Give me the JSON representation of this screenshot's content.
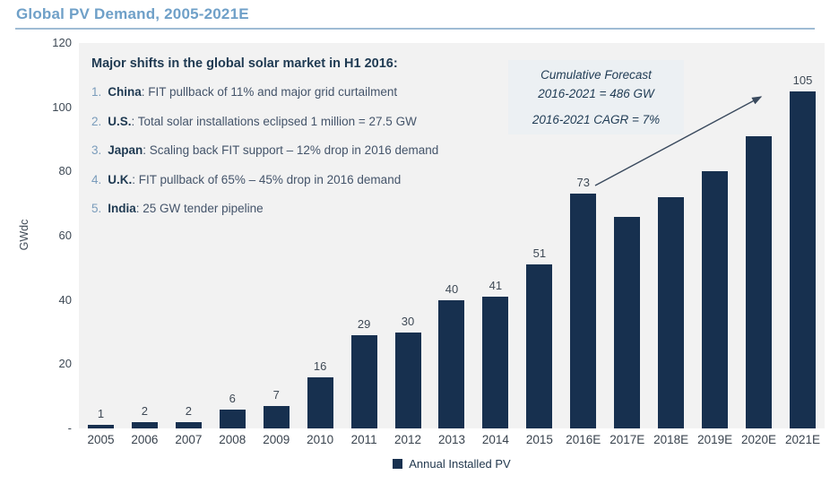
{
  "header": {
    "title": "Global PV Demand, 2005-2021E"
  },
  "annotation": {
    "heading": "Major shifts in the global solar market in H1 2016:",
    "items": [
      {
        "num": "1.",
        "name": "China",
        "text": ": FIT pullback of 11% and major grid curtailment"
      },
      {
        "num": "2.",
        "name": "U.S.",
        "text": ": Total solar installations eclipsed 1 million = 27.5 GW"
      },
      {
        "num": "3.",
        "name": "Japan",
        "text": ": Scaling back FIT support – 12% drop in 2016 demand"
      },
      {
        "num": "4.",
        "name": "U.K.",
        "text": ": FIT pullback of 65% – 45% drop in 2016 demand"
      },
      {
        "num": "5.",
        "name": "India",
        "text": ": 25 GW tender pipeline"
      }
    ]
  },
  "forecast": {
    "box1_line1": "Cumulative Forecast",
    "box1_line2": "2016-2021 = 486 GW",
    "box2_text": "2016-2021 CAGR = 7%"
  },
  "chart_data": {
    "type": "bar",
    "title": "Global PV Demand, 2005-2021E",
    "xlabel": "",
    "ylabel": "GWdc",
    "ylim": [
      0,
      120
    ],
    "ytick_labels": [
      "120",
      "100",
      "80",
      "60",
      "40",
      "20",
      "-"
    ],
    "categories": [
      "2005",
      "2006",
      "2007",
      "2008",
      "2009",
      "2010",
      "2011",
      "2012",
      "2013",
      "2014",
      "2015",
      "2016E",
      "2017E",
      "2018E",
      "2019E",
      "2020E",
      "2021E"
    ],
    "values": [
      1,
      2,
      2,
      6,
      7,
      16,
      29,
      30,
      40,
      41,
      51,
      73,
      66,
      72,
      80,
      91,
      105
    ],
    "bar_labels": [
      "1",
      "2",
      "2",
      "6",
      "7",
      "16",
      "29",
      "30",
      "40",
      "41",
      "51",
      "73",
      "",
      "",
      "",
      "",
      "105"
    ],
    "legend": [
      "Annual Installed PV"
    ],
    "legend_position": "bottom",
    "grid": false,
    "bar_color": "#17304F",
    "plot_background": "#F2F2F2",
    "annotation_arrow": "from 2016E (73) to 2021E (105)"
  },
  "legend": {
    "label": "Annual Installed PV"
  }
}
